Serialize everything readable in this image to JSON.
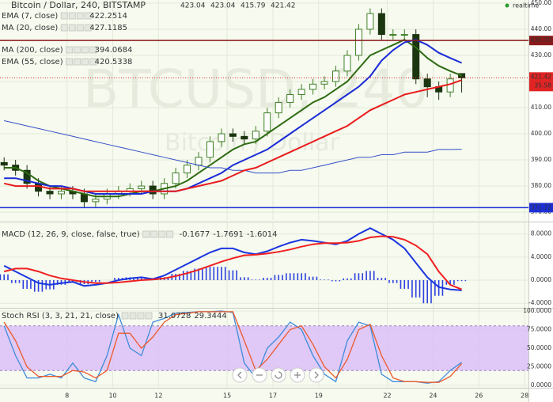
{
  "header": {
    "title": "Bitcoin / Dollar, 240, BITSTAMP",
    "realtime": "realtime",
    "watermark": [
      "BTCUSD, 240",
      "Bitcoin / Dollar"
    ],
    "countdown": "35.58"
  },
  "chart_data": [
    {
      "type": "candlestick",
      "x": [
        5.25,
        5.75,
        6.25,
        6.75,
        7.25,
        7.75,
        8.25,
        8.75,
        9.25,
        9.75,
        10.25,
        10.75,
        11.25,
        11.75,
        12.25,
        12.75,
        13.25,
        13.75,
        14.25,
        14.75,
        15.25,
        15.75,
        16.25,
        16.75,
        17.25,
        17.75,
        18.25,
        18.75,
        19.25,
        19.75,
        20.25,
        20.75,
        21.25,
        21.75,
        22.25,
        22.75,
        23.25,
        23.75,
        24.25,
        24.75,
        25.25
      ],
      "xlim": [
        5.07,
        28.17
      ],
      "ylim": [
        367,
        451.2
      ],
      "yticks": [
        {
          "value": 370,
          "label": "370.00"
        },
        {
          "value": 380,
          "label": "380.00"
        },
        {
          "value": 390,
          "label": "390.00"
        },
        {
          "value": 400,
          "label": "400.00"
        },
        {
          "value": 410,
          "label": "410.00"
        },
        {
          "value": 420,
          "label": "420.00"
        },
        {
          "value": 430,
          "label": "430.00"
        },
        {
          "value": 440,
          "label": "440.00"
        },
        {
          "value": 450,
          "label": "450.00"
        }
      ],
      "open": [
        389,
        388,
        386,
        381,
        378,
        377,
        378,
        377,
        374,
        375,
        377,
        378,
        379,
        380,
        377,
        381,
        385,
        388,
        391,
        397,
        400,
        399,
        398,
        401,
        408,
        412,
        415,
        417,
        419,
        420,
        424,
        430,
        440,
        446,
        438,
        438,
        438,
        421,
        418,
        416,
        423.04
      ],
      "high": [
        391,
        390,
        388,
        383,
        380,
        380,
        380,
        379,
        377,
        379,
        380,
        381,
        382,
        382,
        383,
        387,
        390,
        393,
        399,
        402,
        402,
        401,
        403,
        410,
        414,
        417,
        419,
        421,
        422,
        426,
        432,
        442,
        448,
        448,
        440,
        440,
        440,
        423,
        420,
        423,
        423.04
      ],
      "low": [
        386,
        384,
        379,
        376,
        375,
        375,
        375,
        372,
        372,
        373,
        375,
        376,
        377,
        375,
        375,
        379,
        383,
        386,
        389,
        395,
        397,
        396,
        396,
        399,
        406,
        410,
        413,
        415,
        417,
        418,
        422,
        428,
        438,
        436,
        436,
        436,
        419,
        414,
        413,
        414,
        415.79
      ],
      "close": [
        388,
        386,
        381,
        378,
        377,
        378,
        377,
        374,
        375,
        377,
        378,
        379,
        380,
        377,
        381,
        385,
        388,
        391,
        397,
        400,
        399,
        398,
        401,
        408,
        412,
        415,
        417,
        419,
        420,
        424,
        430,
        440,
        446,
        438,
        438,
        438,
        421,
        418,
        416,
        421,
        421.42
      ],
      "up_color": "#3f7f25",
      "down_color": "#1b3510",
      "last_color": "#e02424",
      "series": [
        {
          "name": "EMA (7, close)",
          "color": "#2f6b12",
          "values": [
            387,
            387,
            385,
            382,
            380,
            379,
            378,
            377,
            376,
            376,
            376,
            377,
            378,
            378,
            379,
            380,
            382,
            385,
            388,
            391,
            394,
            396,
            397,
            400,
            403,
            406,
            409,
            412,
            414,
            417,
            420,
            425,
            430,
            432,
            434,
            436,
            433,
            429,
            426,
            424,
            422.2514
          ]
        },
        {
          "name": "MA (20, close)",
          "color": "#1a2bd6",
          "values": [
            383,
            383,
            382,
            381,
            380,
            380,
            379,
            378,
            377,
            377,
            377,
            377,
            377,
            378,
            378,
            378,
            379,
            381,
            383,
            385,
            388,
            390,
            392,
            394,
            397,
            400,
            403,
            406,
            409,
            412,
            415,
            418,
            422,
            428,
            432,
            435,
            436,
            434,
            431,
            429,
            427.1185
          ]
        },
        {
          "name": "MA (200, close)",
          "color": "#3550c8",
          "values": [
            405,
            404,
            403,
            402,
            401,
            400,
            399,
            398,
            397,
            396,
            395,
            394,
            393,
            392,
            391,
            390,
            389,
            388,
            387,
            387,
            386,
            386,
            385,
            385,
            385,
            386,
            386,
            387,
            388,
            389,
            390,
            391,
            391,
            392,
            392,
            393,
            393,
            393,
            394,
            394,
            394.0684
          ]
        },
        {
          "name": "EMA (55, close)",
          "color": "#e81c1c",
          "values": [
            381,
            380,
            380,
            380,
            379,
            379,
            379,
            378,
            378,
            378,
            378,
            378,
            378,
            378,
            378,
            378,
            379,
            380,
            381,
            382,
            384,
            386,
            387,
            389,
            391,
            393,
            395,
            397,
            399,
            401,
            403,
            406,
            409,
            411,
            413,
            415,
            416,
            417,
            418,
            419,
            420.5338
          ]
        }
      ],
      "hlines": [
        {
          "value": 435.7,
          "label": "435.70",
          "color": "#8b1a1a"
        },
        {
          "value": 371.72,
          "label": "371.72",
          "color": "#1c2fd4"
        }
      ]
    },
    {
      "type": "macd",
      "title": "MACD (12, 26, 9, close, false, true)",
      "x": [
        5.25,
        5.75,
        6.25,
        6.75,
        7.25,
        7.75,
        8.25,
        8.75,
        9.25,
        9.75,
        10.25,
        10.75,
        11.25,
        11.75,
        12.25,
        12.75,
        13.25,
        13.75,
        14.25,
        14.75,
        15.25,
        15.75,
        16.25,
        16.75,
        17.25,
        17.75,
        18.25,
        18.75,
        19.25,
        19.75,
        20.25,
        20.75,
        21.25,
        21.75,
        22.25,
        22.75,
        23.25,
        23.75,
        24.25,
        24.75,
        25.25
      ],
      "xlim": [
        5.07,
        28.17
      ],
      "ylim": [
        -4.79,
        10
      ],
      "yticks": [
        {
          "value": -4,
          "label": "-4.0000"
        },
        {
          "value": 0,
          "label": "0.0000"
        },
        {
          "value": 4,
          "label": "4.0000"
        },
        {
          "value": 8,
          "label": "8.0000"
        }
      ],
      "histogram": [
        1.0,
        -0.5,
        -1.5,
        -2,
        -1.6,
        -0.8,
        -0.3,
        -0.7,
        -0.3,
        0,
        0.4,
        0.5,
        0.5,
        0.1,
        0.5,
        1.1,
        1.6,
        2,
        2.3,
        2.3,
        1.7,
        0.5,
        0.1,
        0.4,
        0.9,
        1.2,
        1.2,
        0.6,
        0.1,
        -0.2,
        0.3,
        1.2,
        1.6,
        0.4,
        -0.5,
        -1.5,
        -3,
        -4,
        -2.7,
        -0.8,
        -0.1677
      ],
      "macd": [
        2.5,
        1.5,
        0.5,
        -0.5,
        -0.8,
        -0.5,
        -0.3,
        -1,
        -0.8,
        -0.5,
        0,
        0.3,
        0.5,
        0.2,
        0.8,
        1.8,
        2.8,
        3.8,
        4.8,
        5.5,
        5.5,
        4.8,
        4.5,
        5,
        5.8,
        6.5,
        7,
        6.8,
        6.5,
        6.2,
        6.8,
        8,
        9,
        8,
        7,
        5.5,
        3,
        0.5,
        -1.2,
        -1.6,
        -1.7691
      ],
      "signal": [
        1.5,
        2,
        2,
        1.5,
        0.8,
        0.3,
        0,
        -0.3,
        -0.5,
        -0.5,
        -0.4,
        -0.2,
        0,
        0.1,
        0.3,
        0.7,
        1.2,
        1.8,
        2.5,
        3.2,
        3.8,
        4.3,
        4.4,
        4.6,
        4.9,
        5.3,
        5.8,
        6.2,
        6.4,
        6.4,
        6.5,
        6.8,
        7.4,
        7.6,
        7.5,
        7,
        6,
        4.5,
        1.5,
        -0.8,
        -1.6014
      ],
      "histogram_color": "#2b3fe0",
      "macd_color": "#1b36e0",
      "signal_color": "#f02020"
    },
    {
      "type": "stoch",
      "title": "Stoch RSI (3, 3, 21, 21, close)",
      "x": [
        5.25,
        5.75,
        6.25,
        6.75,
        7.25,
        7.75,
        8.25,
        8.75,
        9.25,
        9.75,
        10.25,
        10.75,
        11.25,
        11.75,
        12.25,
        12.75,
        13.25,
        13.75,
        14.25,
        14.75,
        15.25,
        15.75,
        16.25,
        16.75,
        17.25,
        17.75,
        18.25,
        18.75,
        19.25,
        19.75,
        20.25,
        20.75,
        21.25,
        21.75,
        22.25,
        22.75,
        23.25,
        23.75,
        24.25,
        24.75,
        25.25
      ],
      "xlim": [
        5.07,
        28.17
      ],
      "ylim": [
        -3.2,
        103.2
      ],
      "yticks": [
        {
          "value": 0,
          "label": "0.0000"
        },
        {
          "value": 25,
          "label": "25.0000"
        },
        {
          "value": 50,
          "label": "50.0000"
        },
        {
          "value": 75,
          "label": "75.0000"
        },
        {
          "value": 100,
          "label": "100.0000"
        }
      ],
      "xticks": [
        8,
        10,
        12,
        15,
        17,
        19,
        22,
        24,
        26,
        28
      ],
      "band": [
        20,
        80
      ],
      "band_color": "#dcc0f7",
      "k": [
        80,
        40,
        10,
        10,
        15,
        10,
        30,
        10,
        5,
        40,
        95,
        50,
        40,
        85,
        90,
        97,
        98,
        99,
        99,
        100,
        98,
        30,
        10,
        50,
        65,
        85,
        75,
        40,
        15,
        5,
        60,
        85,
        80,
        15,
        5,
        5,
        5,
        3,
        5,
        20,
        31.0728
      ],
      "d": [
        85,
        60,
        25,
        12,
        12,
        12,
        20,
        18,
        10,
        20,
        70,
        70,
        50,
        65,
        85,
        95,
        97,
        99,
        99,
        99,
        99,
        60,
        20,
        35,
        55,
        75,
        80,
        55,
        25,
        10,
        35,
        75,
        82,
        40,
        10,
        5,
        5,
        4,
        4,
        12,
        29.3444
      ],
      "k_color": "#3d8bdb",
      "d_color": "#ec5a2c"
    }
  ]
}
